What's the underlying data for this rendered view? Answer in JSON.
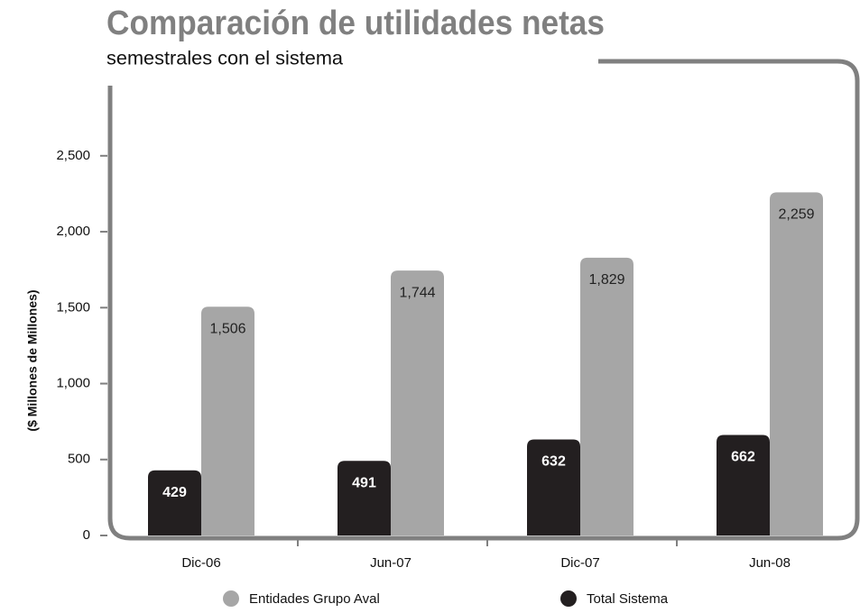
{
  "chart_data": {
    "type": "bar",
    "title": "Comparación de utilidades netas",
    "subtitle": "semestrales con el sistema",
    "y_axis_label": "($ Millones de Millones)",
    "categories": [
      "Dic-06",
      "Jun-07",
      "Dic-07",
      "Jun-08"
    ],
    "series": [
      {
        "name": "Total Sistema",
        "color": "#231f20",
        "values": [
          429,
          491,
          632,
          662
        ]
      },
      {
        "name": "Entidades Grupo Aval",
        "color": "#a6a6a6",
        "values": [
          1506,
          1744,
          1829,
          2259
        ],
        "value_labels": [
          "1,506",
          "1,744",
          "1,829",
          "2,259"
        ]
      }
    ],
    "ylim": [
      0,
      2950
    ],
    "yticks": [
      0,
      500,
      {
        "value": 1000,
        "label": "1,000"
      },
      {
        "value": 1500,
        "label": "1,500"
      },
      {
        "value": 2000,
        "label": "2,000"
      },
      {
        "value": 2500,
        "label": "2,500"
      }
    ],
    "legend": "bottom",
    "grid": false
  }
}
